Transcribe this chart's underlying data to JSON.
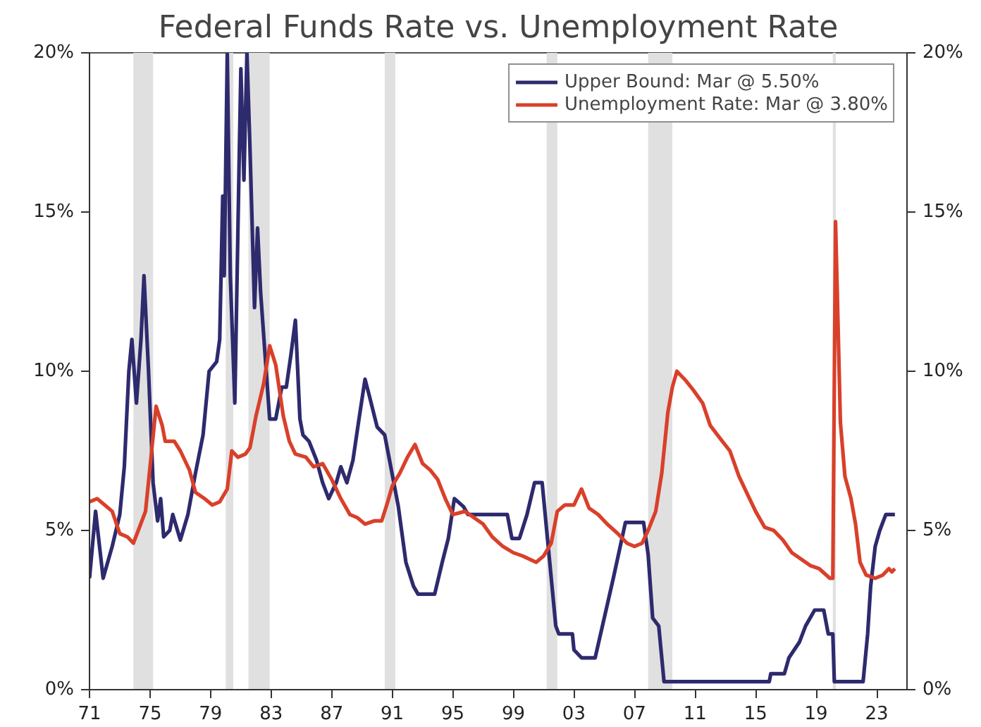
{
  "chart_data": {
    "type": "line",
    "title": "Federal Funds Rate vs. Unemployment Rate",
    "xlim": [
      1971,
      2025
    ],
    "xticks": [
      {
        "value": 1971,
        "label": "71"
      },
      {
        "value": 1975,
        "label": "75"
      },
      {
        "value": 1979,
        "label": "79"
      },
      {
        "value": 1983,
        "label": "83"
      },
      {
        "value": 1987,
        "label": "87"
      },
      {
        "value": 1991,
        "label": "91"
      },
      {
        "value": 1995,
        "label": "95"
      },
      {
        "value": 1999,
        "label": "99"
      },
      {
        "value": 2003,
        "label": "03"
      },
      {
        "value": 2007,
        "label": "07"
      },
      {
        "value": 2011,
        "label": "11"
      },
      {
        "value": 2015,
        "label": "15"
      },
      {
        "value": 2019,
        "label": "19"
      },
      {
        "value": 2023,
        "label": "23"
      }
    ],
    "ylim": [
      0,
      20
    ],
    "yticks": [
      {
        "value": 0,
        "label": "0%"
      },
      {
        "value": 5,
        "label": "5%"
      },
      {
        "value": 10,
        "label": "10%"
      },
      {
        "value": 15,
        "label": "15%"
      },
      {
        "value": 20,
        "label": "20%"
      }
    ],
    "y2lim": [
      0,
      20
    ],
    "y2ticks": [
      {
        "value": 0,
        "label": "0%"
      },
      {
        "value": 5,
        "label": "5%"
      },
      {
        "value": 10,
        "label": "10%"
      },
      {
        "value": 15,
        "label": "15%"
      },
      {
        "value": 20,
        "label": "20%"
      }
    ],
    "legend": "top right",
    "grid": false,
    "marker": "none",
    "line_style": "solid",
    "bands": [
      {
        "axis": "x",
        "from": 1973.9,
        "to": 1975.2,
        "color": "#e0e0e0"
      },
      {
        "axis": "x",
        "from": 1980.0,
        "to": 1980.5,
        "color": "#e0e0e0"
      },
      {
        "axis": "x",
        "from": 1981.5,
        "to": 1982.9,
        "color": "#e0e0e0"
      },
      {
        "axis": "x",
        "from": 1990.5,
        "to": 1991.2,
        "color": "#e0e0e0"
      },
      {
        "axis": "x",
        "from": 2001.2,
        "to": 2001.9,
        "color": "#e0e0e0"
      },
      {
        "axis": "x",
        "from": 2007.9,
        "to": 2009.5,
        "color": "#e0e0e0"
      },
      {
        "axis": "x",
        "from": 2020.1,
        "to": 2020.3,
        "color": "#e0e0e0"
      }
    ],
    "series": [
      {
        "name": "Upper Bound: Mar @ 5.50%",
        "color": "#2e2a6e",
        "x": [
          1971.0,
          1971.4,
          1971.9,
          1972.5,
          1973.0,
          1973.3,
          1973.6,
          1973.8,
          1974.1,
          1974.4,
          1974.6,
          1974.9,
          1975.2,
          1975.5,
          1975.7,
          1975.9,
          1976.3,
          1976.5,
          1977.0,
          1977.5,
          1978.0,
          1978.5,
          1978.9,
          1979.4,
          1979.6,
          1979.8,
          1979.9,
          1980.1,
          1980.3,
          1980.6,
          1980.9,
          1981.0,
          1981.2,
          1981.4,
          1981.6,
          1981.9,
          1982.1,
          1982.3,
          1982.6,
          1982.9,
          1983.3,
          1983.7,
          1984.0,
          1984.3,
          1984.6,
          1984.9,
          1985.1,
          1985.5,
          1986.0,
          1986.4,
          1986.8,
          1987.3,
          1987.6,
          1988.0,
          1988.4,
          1988.8,
          1989.2,
          1989.5,
          1990.0,
          1990.5,
          1990.9,
          1991.4,
          1991.9,
          1992.4,
          1992.7,
          1993.8,
          1994.3,
          1994.7,
          1995.1,
          1995.7,
          1996.0,
          1997.2,
          1998.6,
          1998.9,
          1999.4,
          1999.9,
          2000.4,
          2000.9,
          2001.3,
          2001.8,
          2002.0,
          2002.9,
          2003.0,
          2003.5,
          2004.4,
          2005.0,
          2005.6,
          2006.4,
          2007.6,
          2007.9,
          2008.2,
          2008.6,
          2008.95,
          2015.9,
          2016.0,
          2016.9,
          2017.2,
          2017.9,
          2018.3,
          2018.9,
          2019.5,
          2019.8,
          2020.1,
          2020.2,
          2022.1,
          2022.4,
          2022.6,
          2022.9,
          2023.2,
          2023.6,
          2024.2
        ],
        "values": [
          3.5,
          5.6,
          3.5,
          4.5,
          5.5,
          7.0,
          10.0,
          11.0,
          9.0,
          11.0,
          13.0,
          10.0,
          6.5,
          5.3,
          6.0,
          4.8,
          5.0,
          5.5,
          4.7,
          5.5,
          6.8,
          8.0,
          10.0,
          10.3,
          11.0,
          15.5,
          13.0,
          20.0,
          13.0,
          9.0,
          17.0,
          19.5,
          16.0,
          20.0,
          17.0,
          12.0,
          14.5,
          12.5,
          10.5,
          8.5,
          8.5,
          9.5,
          9.5,
          10.5,
          11.6,
          8.5,
          8.0,
          7.8,
          7.2,
          6.5,
          6.0,
          6.5,
          7.0,
          6.5,
          7.2,
          8.5,
          9.75,
          9.2,
          8.25,
          8.0,
          7.0,
          5.75,
          4.0,
          3.25,
          3.0,
          3.0,
          4.0,
          4.75,
          6.0,
          5.75,
          5.5,
          5.5,
          5.5,
          4.75,
          4.75,
          5.5,
          6.5,
          6.5,
          4.5,
          2.0,
          1.75,
          1.75,
          1.25,
          1.0,
          1.0,
          2.25,
          3.5,
          5.25,
          5.25,
          4.25,
          2.25,
          2.0,
          0.25,
          0.25,
          0.5,
          0.5,
          1.0,
          1.5,
          2.0,
          2.5,
          2.5,
          1.75,
          1.75,
          0.25,
          0.25,
          1.75,
          3.25,
          4.5,
          5.0,
          5.5,
          5.5
        ]
      },
      {
        "name": "Unemployment Rate: Mar @ 3.80%",
        "color": "#d9402a",
        "x": [
          1971.0,
          1971.5,
          1972.0,
          1972.5,
          1973.0,
          1973.5,
          1973.9,
          1974.3,
          1974.7,
          1975.0,
          1975.4,
          1975.8,
          1976.0,
          1976.6,
          1977.0,
          1977.6,
          1978.0,
          1978.6,
          1979.1,
          1979.6,
          1980.1,
          1980.4,
          1980.8,
          1981.3,
          1981.6,
          1982.0,
          1982.5,
          1982.9,
          1983.3,
          1983.8,
          1984.2,
          1984.6,
          1985.3,
          1985.8,
          1986.4,
          1987.0,
          1987.6,
          1988.2,
          1988.7,
          1989.2,
          1989.8,
          1990.3,
          1990.7,
          1991.0,
          1991.5,
          1992.0,
          1992.5,
          1993.0,
          1993.5,
          1994.0,
          1994.5,
          1995.0,
          1995.8,
          1996.4,
          1997.0,
          1997.6,
          1998.3,
          1999.0,
          1999.6,
          2000.5,
          2001.0,
          2001.5,
          2001.9,
          2002.4,
          2003.0,
          2003.5,
          2004.0,
          2004.6,
          2005.2,
          2005.9,
          2006.5,
          2007.0,
          2007.5,
          2007.9,
          2008.4,
          2008.8,
          2009.2,
          2009.5,
          2009.8,
          2010.4,
          2010.9,
          2011.5,
          2012.0,
          2012.8,
          2013.3,
          2013.9,
          2014.5,
          2015.0,
          2015.6,
          2016.2,
          2016.8,
          2017.4,
          2018.0,
          2018.6,
          2019.2,
          2019.9,
          2020.1,
          2020.28,
          2020.6,
          2020.9,
          2021.3,
          2021.6,
          2021.9,
          2022.3,
          2022.9,
          2023.4,
          2023.8,
          2024.0,
          2024.2
        ],
        "values": [
          5.9,
          6.0,
          5.8,
          5.6,
          4.9,
          4.8,
          4.6,
          5.1,
          5.6,
          7.0,
          8.9,
          8.3,
          7.8,
          7.8,
          7.5,
          6.9,
          6.2,
          6.0,
          5.8,
          5.9,
          6.3,
          7.5,
          7.3,
          7.4,
          7.6,
          8.6,
          9.6,
          10.8,
          10.2,
          8.6,
          7.8,
          7.4,
          7.3,
          7.0,
          7.1,
          6.6,
          6.0,
          5.5,
          5.4,
          5.2,
          5.3,
          5.3,
          5.9,
          6.4,
          6.8,
          7.3,
          7.7,
          7.1,
          6.9,
          6.6,
          6.0,
          5.5,
          5.6,
          5.4,
          5.2,
          4.8,
          4.5,
          4.3,
          4.2,
          4.0,
          4.2,
          4.6,
          5.6,
          5.8,
          5.8,
          6.3,
          5.7,
          5.5,
          5.2,
          4.9,
          4.6,
          4.5,
          4.6,
          5.0,
          5.6,
          6.8,
          8.7,
          9.5,
          10.0,
          9.7,
          9.4,
          9.0,
          8.3,
          7.8,
          7.5,
          6.7,
          6.1,
          5.6,
          5.1,
          5.0,
          4.7,
          4.3,
          4.1,
          3.9,
          3.8,
          3.5,
          3.5,
          14.7,
          8.4,
          6.7,
          6.0,
          5.2,
          4.0,
          3.6,
          3.5,
          3.6,
          3.8,
          3.7,
          3.8
        ]
      }
    ]
  }
}
